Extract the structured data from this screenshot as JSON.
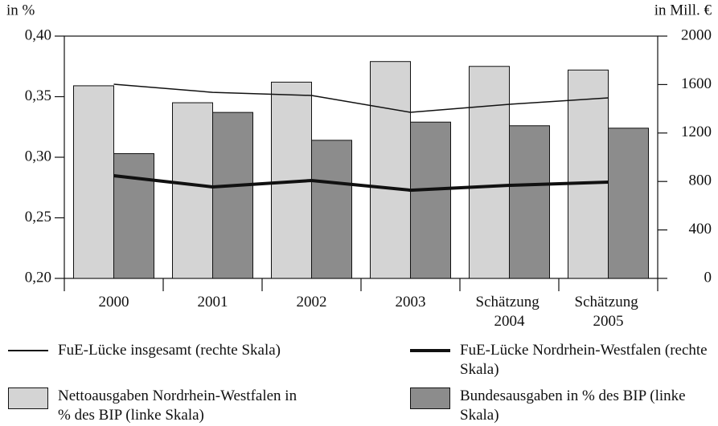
{
  "chart_data": {
    "type": "bar",
    "y_label": "in %",
    "y2_label": "in Mill. €",
    "categories": [
      "2000",
      "2001",
      "2002",
      "2003",
      "Schätzung 2004",
      "Schätzung 2005"
    ],
    "ylim": [
      0.2,
      0.4
    ],
    "yticks": [
      {
        "value": 0.2,
        "label": "0,20"
      },
      {
        "value": 0.25,
        "label": "0,25"
      },
      {
        "value": 0.3,
        "label": "0,30"
      },
      {
        "value": 0.35,
        "label": "0,35"
      },
      {
        "value": 0.4,
        "label": "0,40"
      }
    ],
    "y2lim": [
      0,
      2000
    ],
    "y2ticks": [
      0,
      400,
      800,
      1200,
      1600,
      2000
    ],
    "series": [
      {
        "name": "FuE-Lücke insgesamt (rechte Skala)",
        "type": "line",
        "axis": "y2",
        "color": "#111111",
        "width": 1.5,
        "values": [
          1603,
          1536,
          1510,
          1371,
          1437,
          1490
        ]
      },
      {
        "name": "FuE-Lücke Nordrhein-Westfalen (rechte Skala)",
        "type": "line",
        "axis": "y2",
        "color": "#111111",
        "width": 4,
        "values": [
          848,
          755,
          808,
          728,
          768,
          795
        ]
      },
      {
        "name": "Nettoausgaben Nordrhein-Westfalen in % des BIP (linke Skala)",
        "type": "bar",
        "color": "#d4d4d4",
        "values": [
          0.359,
          0.345,
          0.362,
          0.379,
          0.375,
          0.372
        ]
      },
      {
        "name": "Bundesausgaben in % des BIP (linke Skala)",
        "type": "bar",
        "color": "#8c8c8c",
        "values": [
          0.303,
          0.337,
          0.314,
          0.329,
          0.326,
          0.324
        ]
      }
    ]
  }
}
